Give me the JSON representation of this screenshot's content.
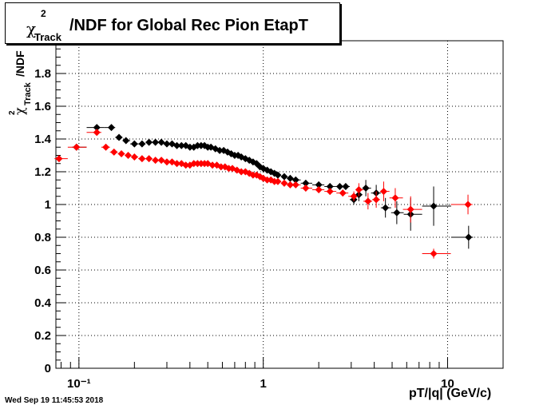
{
  "title": {
    "chi": "χ",
    "sup": "2",
    "sub": "Track",
    "rest": "/NDF for Global Rec Pion EtapT"
  },
  "timestamp": "Wed Sep 19 11:45:53 2018",
  "chart_data": {
    "type": "scatter",
    "x_scale": "log",
    "xlim": [
      0.075,
      20
    ],
    "ylim": [
      0,
      2.0
    ],
    "xlabel": "pT/|q| (GeV/c)",
    "ylabel": "χ²Track/NDF",
    "x_tick_labels": [
      {
        "value": 0.1,
        "text": "10⁻¹"
      },
      {
        "value": 1,
        "text": "1"
      },
      {
        "value": 10,
        "text": "10"
      }
    ],
    "y_tick_labels": [
      "0",
      "0.2",
      "0.4",
      "0.6",
      "0.8",
      "1",
      "1.2",
      "1.4",
      "1.6",
      "1.8"
    ],
    "grid": true,
    "series": [
      {
        "color": "#000000",
        "points": [
          [
            0.097,
            1.35
          ],
          [
            0.125,
            1.47
          ],
          [
            0.15,
            1.47
          ],
          [
            0.165,
            1.41
          ],
          [
            0.18,
            1.39
          ],
          [
            0.2,
            1.37
          ],
          [
            0.22,
            1.37
          ],
          [
            0.24,
            1.38
          ],
          [
            0.26,
            1.38
          ],
          [
            0.28,
            1.38
          ],
          [
            0.3,
            1.37
          ],
          [
            0.32,
            1.37
          ],
          [
            0.34,
            1.36
          ],
          [
            0.36,
            1.36
          ],
          [
            0.38,
            1.36
          ],
          [
            0.4,
            1.35
          ],
          [
            0.42,
            1.35
          ],
          [
            0.44,
            1.36
          ],
          [
            0.46,
            1.36
          ],
          [
            0.48,
            1.36
          ],
          [
            0.5,
            1.35
          ],
          [
            0.52,
            1.35
          ],
          [
            0.55,
            1.34
          ],
          [
            0.58,
            1.33
          ],
          [
            0.61,
            1.33
          ],
          [
            0.64,
            1.32
          ],
          [
            0.67,
            1.31
          ],
          [
            0.7,
            1.3
          ],
          [
            0.73,
            1.3
          ],
          [
            0.76,
            1.29
          ],
          [
            0.8,
            1.28
          ],
          [
            0.84,
            1.27
          ],
          [
            0.88,
            1.26
          ],
          [
            0.92,
            1.25
          ],
          [
            0.96,
            1.23
          ],
          [
            1.0,
            1.22
          ],
          [
            1.05,
            1.21
          ],
          [
            1.1,
            1.2
          ],
          [
            1.15,
            1.19
          ],
          [
            1.2,
            1.18
          ],
          [
            1.3,
            1.17
          ],
          [
            1.4,
            1.16
          ],
          [
            1.5,
            1.15
          ],
          [
            1.7,
            1.13
          ],
          [
            2.0,
            1.12
          ],
          [
            2.3,
            1.11
          ],
          [
            2.6,
            1.11
          ],
          [
            2.8,
            1.11
          ],
          [
            3.1,
            1.03
          ],
          [
            3.3,
            1.06
          ],
          [
            3.6,
            1.1
          ],
          [
            4.1,
            1.07
          ],
          [
            4.6,
            0.98
          ],
          [
            5.3,
            0.95
          ],
          [
            6.3,
            0.94
          ],
          [
            8.4,
            0.99
          ],
          [
            13.0,
            0.8
          ]
        ],
        "y_errors": [
          0.01,
          0.01,
          0.01,
          0.01,
          0.01,
          0.01,
          0.01,
          0.01,
          0.01,
          0.01,
          0.01,
          0.01,
          0.01,
          0.01,
          0.01,
          0.01,
          0.01,
          0.01,
          0.01,
          0.01,
          0.01,
          0.01,
          0.01,
          0.01,
          0.01,
          0.01,
          0.01,
          0.01,
          0.01,
          0.01,
          0.01,
          0.01,
          0.01,
          0.01,
          0.01,
          0.01,
          0.01,
          0.01,
          0.01,
          0.01,
          0.01,
          0.01,
          0.01,
          0.02,
          0.02,
          0.02,
          0.02,
          0.02,
          0.03,
          0.04,
          0.05,
          0.05,
          0.06,
          0.07,
          0.1,
          0.12,
          0.07
        ]
      },
      {
        "color": "#ff0000",
        "points": [
          [
            0.078,
            1.28
          ],
          [
            0.097,
            1.35
          ],
          [
            0.125,
            1.44
          ],
          [
            0.14,
            1.35
          ],
          [
            0.155,
            1.32
          ],
          [
            0.17,
            1.31
          ],
          [
            0.185,
            1.3
          ],
          [
            0.2,
            1.29
          ],
          [
            0.22,
            1.28
          ],
          [
            0.24,
            1.28
          ],
          [
            0.26,
            1.27
          ],
          [
            0.28,
            1.27
          ],
          [
            0.3,
            1.26
          ],
          [
            0.32,
            1.26
          ],
          [
            0.34,
            1.25
          ],
          [
            0.36,
            1.25
          ],
          [
            0.38,
            1.24
          ],
          [
            0.4,
            1.24
          ],
          [
            0.42,
            1.25
          ],
          [
            0.44,
            1.25
          ],
          [
            0.46,
            1.25
          ],
          [
            0.48,
            1.25
          ],
          [
            0.5,
            1.25
          ],
          [
            0.53,
            1.24
          ],
          [
            0.56,
            1.24
          ],
          [
            0.59,
            1.23
          ],
          [
            0.62,
            1.23
          ],
          [
            0.65,
            1.22
          ],
          [
            0.68,
            1.22
          ],
          [
            0.72,
            1.21
          ],
          [
            0.76,
            1.2
          ],
          [
            0.8,
            1.2
          ],
          [
            0.84,
            1.19
          ],
          [
            0.88,
            1.18
          ],
          [
            0.92,
            1.18
          ],
          [
            0.96,
            1.17
          ],
          [
            1.0,
            1.16
          ],
          [
            1.05,
            1.15
          ],
          [
            1.1,
            1.15
          ],
          [
            1.15,
            1.14
          ],
          [
            1.2,
            1.14
          ],
          [
            1.3,
            1.13
          ],
          [
            1.4,
            1.12
          ],
          [
            1.5,
            1.12
          ],
          [
            1.7,
            1.1
          ],
          [
            2.0,
            1.09
          ],
          [
            2.3,
            1.08
          ],
          [
            2.7,
            1.07
          ],
          [
            3.1,
            1.05
          ],
          [
            3.3,
            1.09
          ],
          [
            3.7,
            1.02
          ],
          [
            4.1,
            1.03
          ],
          [
            4.5,
            1.08
          ],
          [
            5.2,
            1.04
          ],
          [
            6.3,
            0.97
          ],
          [
            8.4,
            0.7
          ],
          [
            12.9,
            1.0
          ]
        ],
        "y_errors": [
          0.02,
          0.01,
          0.01,
          0.01,
          0.01,
          0.01,
          0.01,
          0.01,
          0.01,
          0.01,
          0.01,
          0.01,
          0.01,
          0.01,
          0.01,
          0.01,
          0.01,
          0.01,
          0.01,
          0.01,
          0.01,
          0.01,
          0.01,
          0.01,
          0.01,
          0.01,
          0.01,
          0.01,
          0.01,
          0.01,
          0.01,
          0.01,
          0.01,
          0.01,
          0.01,
          0.01,
          0.01,
          0.01,
          0.01,
          0.01,
          0.01,
          0.01,
          0.01,
          0.01,
          0.02,
          0.02,
          0.02,
          0.02,
          0.03,
          0.04,
          0.05,
          0.05,
          0.06,
          0.06,
          0.08,
          0.03,
          0.06
        ]
      }
    ]
  }
}
